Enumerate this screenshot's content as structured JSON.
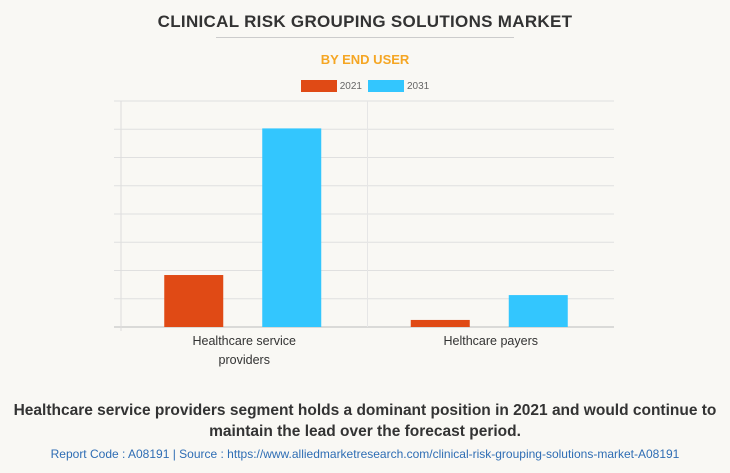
{
  "chart_data": {
    "type": "bar",
    "title": "CLINICAL RISK GROUPING SOLUTIONS MARKET",
    "subtitle": "BY END USER",
    "categories": [
      "Healthcare service providers",
      "Helthcare payers"
    ],
    "category_lines": [
      [
        "Healthcare service",
        "providers"
      ],
      [
        "Helthcare payers"
      ]
    ],
    "series": [
      {
        "name": "2021",
        "color": "#e04a15",
        "values": [
          1.84,
          0.25
        ]
      },
      {
        "name": "2031",
        "color": "#33c6fe",
        "values": [
          7.03,
          1.13
        ]
      }
    ],
    "ylim": [
      0,
      8
    ],
    "grid": true,
    "legend": "top-center",
    "xlabel": "",
    "ylabel": ""
  },
  "insight": "Healthcare service providers segment holds a dominant position in 2021 and would continue to maintain the lead over the forecast period.",
  "source": "Report Code : A08191  |  Source : https://www.alliedmarketresearch.com/clinical-risk-grouping-solutions-market-A08191"
}
